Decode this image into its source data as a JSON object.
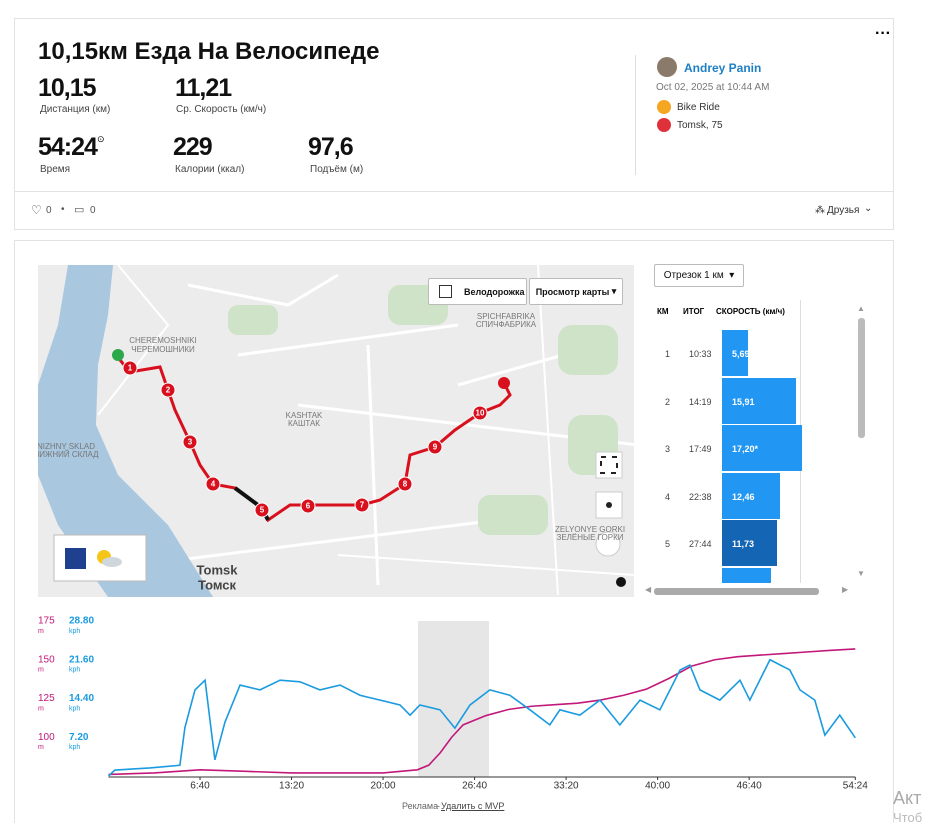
{
  "header": {
    "title": "10,15км Езда На Велосипеде",
    "stats": [
      {
        "value": "10,15",
        "label": "Дистанция (км)"
      },
      {
        "value": "11,21",
        "label": "Ср. Скорость (км/ч)"
      },
      {
        "value": "54:24",
        "label": "Время"
      },
      {
        "value": "229",
        "label": "Калории (ккал)"
      },
      {
        "value": "97,6",
        "label": "Подъём (м)"
      }
    ],
    "user": "Andrey Panin",
    "date": "Oct 02, 2025 at 10:44 AM",
    "activity": "Bike Ride",
    "location": "Tomsk, 75",
    "likes": "0",
    "comments": "0",
    "privacy": "Друзья"
  },
  "map": {
    "bike_lanes": "Велодорожка",
    "view": "Просмотр карты",
    "places": [
      "CHEREMOSHNIKI",
      "ЧЕРЕМОШНИКИ",
      "SPICHFABRIKA",
      "СПИЧФАБРИКА",
      "KASHTAK",
      "КАШТАК",
      "NIZHNY SKLAD",
      "НИЖНИЙ СКЛАД",
      "Tomsk",
      "Томск",
      "ZELYONYE GORKI",
      "ЗЕЛЁНЫЕ ГОРКИ"
    ],
    "markers": [
      "1",
      "2",
      "3",
      "4",
      "5",
      "6",
      "7",
      "8",
      "9",
      "10"
    ]
  },
  "splits": {
    "selector": "Отрезок 1 км",
    "columns": [
      "КМ",
      "ИТОГ",
      "СКОРОСТЬ (км/ч)"
    ],
    "rows": [
      {
        "km": "1",
        "time": "10:33",
        "speed": {
          "value": 5.69,
          "label": "5,69"
        }
      },
      {
        "km": "2",
        "time": "14:19",
        "speed": {
          "value": 15.91,
          "label": "15,91"
        }
      },
      {
        "km": "3",
        "time": "17:49",
        "speed": {
          "value": 17.2,
          "label": "17,20*"
        }
      },
      {
        "km": "4",
        "time": "22:38",
        "speed": {
          "value": 12.46,
          "label": "12,46"
        }
      },
      {
        "km": "5",
        "time": "27:44",
        "speed": {
          "value": 11.73,
          "label": "11,73"
        }
      }
    ]
  },
  "profile_chart": {
    "type": "line",
    "xlim": [
      0,
      3264
    ],
    "xticks": [
      {
        "value": 400,
        "label": "6:40"
      },
      {
        "value": 800,
        "label": "13:20"
      },
      {
        "value": 1200,
        "label": "20:00"
      },
      {
        "value": 1600,
        "label": "26:40"
      },
      {
        "value": 2000,
        "label": "33:20"
      },
      {
        "value": 2400,
        "label": "40:00"
      },
      {
        "value": 2800,
        "label": "46:40"
      },
      {
        "value": 3264,
        "label": "54:24"
      }
    ],
    "ylim": [
      75,
      175
    ],
    "yticks": [
      100,
      125,
      150,
      175
    ],
    "y_unit": "m",
    "y2lim": [
      0,
      28.8
    ],
    "y2ticks": [
      {
        "value": 7.2,
        "label": "7.20"
      },
      {
        "value": 14.4,
        "label": "14.40"
      },
      {
        "value": 21.6,
        "label": "21.60"
      },
      {
        "value": 28.8,
        "label": "28.80"
      }
    ],
    "y2_unit": "kph",
    "series": [
      {
        "color": "#c2187a",
        "x": [
          0,
          200,
          400,
          600,
          800,
          1000,
          1200,
          1350,
          1400,
          1450,
          1500,
          1550,
          1650,
          1750,
          1850,
          1950,
          2050,
          2150,
          2250,
          2350,
          2450,
          2550,
          2650,
          2750,
          2850,
          2950,
          3050,
          3150,
          3264
        ],
        "values": [
          76,
          77,
          79,
          78,
          77,
          77,
          77,
          79,
          82,
          90,
          100,
          108,
          114,
          118,
          120,
          121,
          122,
          124,
          127,
          131,
          138,
          146,
          150,
          152,
          153,
          154,
          155,
          156,
          157
        ]
      },
      {
        "color": "#1a9be0",
        "axis": "y2",
        "x": [
          0,
          28,
          181,
          312,
          334,
          378,
          422,
          465,
          509,
          575,
          662,
          750,
          837,
          924,
          1012,
          1099,
          1187,
          1274,
          1318,
          1361,
          1449,
          1514,
          1580,
          1667,
          1754,
          1842,
          1929,
          1973,
          2060,
          2148,
          2235,
          2323,
          2410,
          2498,
          2541,
          2585,
          2672,
          2760,
          2803,
          2891,
          2978,
          3022,
          3087,
          3131,
          3196,
          3264
        ],
        "values": [
          0,
          1.1,
          1.5,
          2,
          9,
          16,
          17.8,
          3,
          10,
          16.9,
          16,
          17.8,
          17.5,
          16,
          16.9,
          15,
          14.1,
          13.2,
          11.3,
          13.2,
          12.3,
          8.9,
          13.2,
          16,
          15,
          12.3,
          9.5,
          12.3,
          11.3,
          14.1,
          9.5,
          14.1,
          12.3,
          19.7,
          20.6,
          16,
          14.1,
          17.8,
          14.1,
          21.6,
          19.7,
          16,
          14.1,
          7.6,
          11.3,
          7.1
        ]
      }
    ]
  },
  "ad": {
    "label": "Реклама",
    "link": "Удалить с MVP"
  },
  "watermark": [
    "Акт",
    "Чтоб"
  ]
}
